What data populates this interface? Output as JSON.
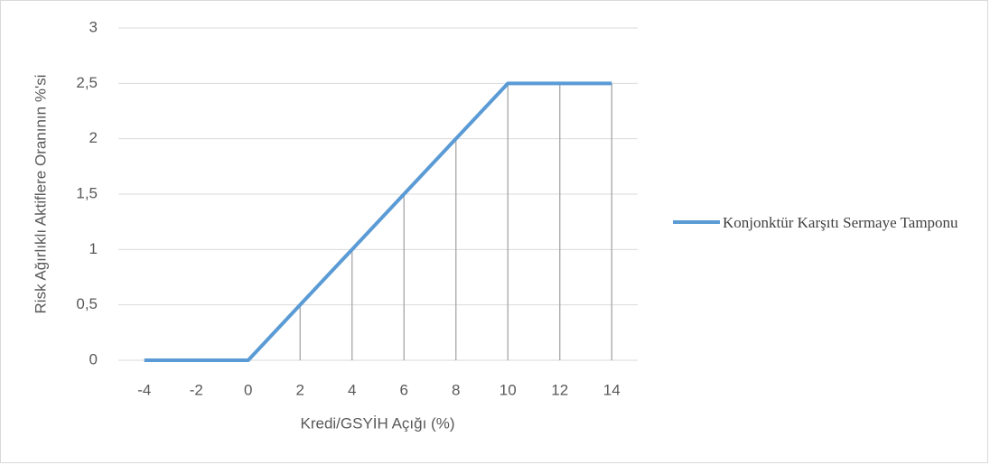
{
  "chart_data": {
    "type": "line",
    "x_label": "Kredi/GSYİH Açığı (%)",
    "y_label": "Risk Ağırlıklı Aktiflere Oranının %'si",
    "x": [
      -4,
      -2,
      0,
      2,
      4,
      6,
      8,
      10,
      12,
      14
    ],
    "series": [
      {
        "name": "Konjonktür Karşıtı Sermaye Tamponu",
        "color": "#5b9bd5",
        "values": [
          0,
          0,
          0,
          0.5,
          1,
          1.5,
          2,
          2.5,
          2.5,
          2.5
        ]
      }
    ],
    "xlim": [
      -5,
      15
    ],
    "xticks": [
      -4,
      -2,
      0,
      2,
      4,
      6,
      8,
      10,
      12,
      14
    ],
    "ylim": [
      0,
      3
    ],
    "yticks": [
      0,
      {
        "value": 0.5,
        "label": "0,5"
      },
      1,
      {
        "value": 1.5,
        "label": "1,5"
      },
      2,
      {
        "value": 2.5,
        "label": "2,5"
      },
      3
    ],
    "grid": true,
    "drop_lines": true,
    "legend": "right"
  }
}
